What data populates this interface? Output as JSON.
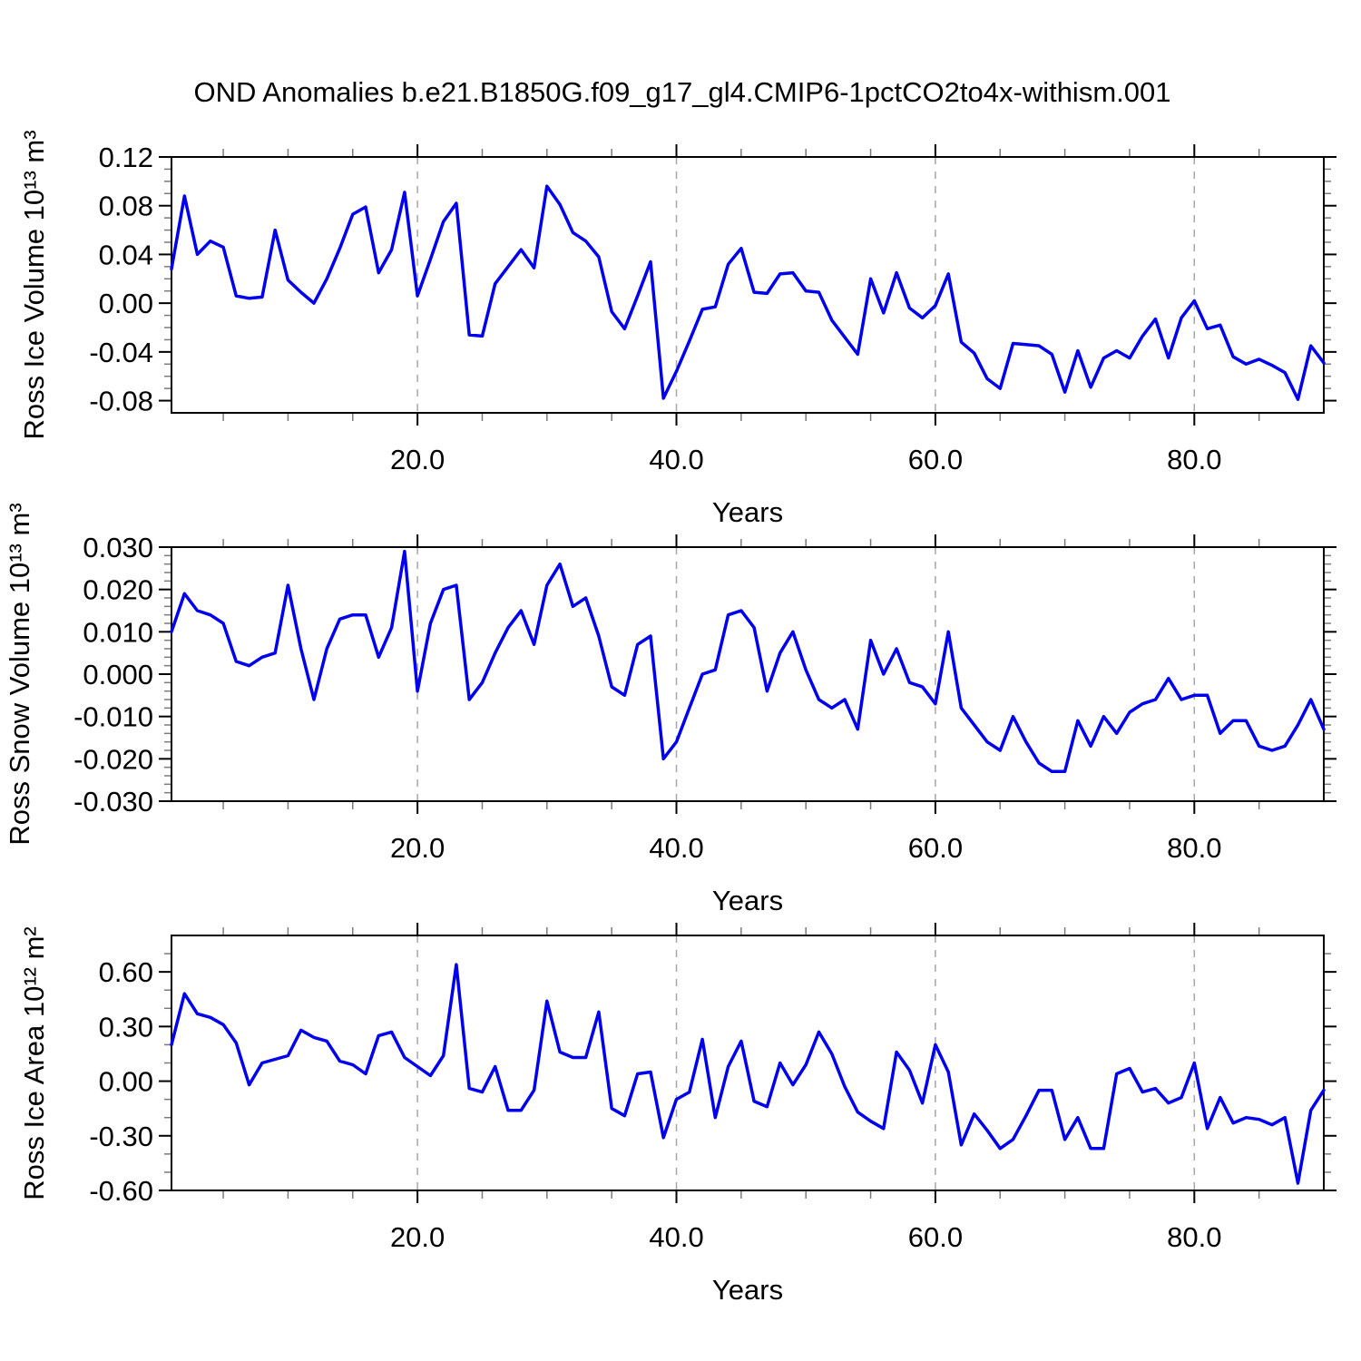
{
  "title": "OND Anomalies b.e21.B1850G.f09_g17_gl4.CMIP6-1pctCO2to4x-withism.001",
  "line_color": "#0000EE",
  "grid_color": "#a6a6a6",
  "chart_data": [
    {
      "type": "line",
      "ylabel": "Ross Ice Volume 10¹³ m³",
      "xlabel": "Years",
      "xlim": [
        1,
        90
      ],
      "ylim": [
        -0.09,
        0.12
      ],
      "x_major_ticks": [
        20,
        40,
        60,
        80
      ],
      "x_tick_labels": [
        "20.0",
        "40.0",
        "60.0",
        "80.0"
      ],
      "x_minor_step": 5,
      "y_major_ticks": [
        0.12,
        0.08,
        0.04,
        0.0,
        -0.04,
        -0.08
      ],
      "y_tick_labels": [
        "0.12",
        "0.08",
        "0.04",
        "0.00",
        "-0.04",
        "-0.08"
      ],
      "y_minor_step": 0.01,
      "grid": "vertical dashed at x majors",
      "legend": "none",
      "x_start": 1,
      "x_step": 1,
      "values": [
        0.028,
        0.088,
        0.04,
        0.051,
        0.046,
        0.006,
        0.004,
        0.005,
        0.06,
        0.019,
        0.009,
        0.0,
        0.02,
        0.045,
        0.073,
        0.079,
        0.025,
        0.044,
        0.091,
        0.006,
        0.036,
        0.067,
        0.082,
        -0.026,
        -0.027,
        0.016,
        0.03,
        0.044,
        0.029,
        0.096,
        0.081,
        0.058,
        0.051,
        0.038,
        -0.007,
        -0.021,
        0.006,
        0.034,
        -0.078,
        -0.056,
        -0.031,
        -0.005,
        -0.003,
        0.032,
        0.045,
        0.009,
        0.008,
        0.024,
        0.025,
        0.01,
        0.009,
        -0.014,
        -0.028,
        -0.042,
        0.02,
        -0.008,
        0.025,
        -0.004,
        -0.012,
        -0.002,
        0.024,
        -0.032,
        -0.041,
        -0.062,
        -0.07,
        -0.033,
        -0.034,
        -0.035,
        -0.042,
        -0.073,
        -0.039,
        -0.069,
        -0.045,
        -0.039,
        -0.045,
        -0.027,
        -0.013,
        -0.045,
        -0.012,
        0.002,
        -0.021,
        -0.018,
        -0.044,
        -0.05,
        -0.046,
        -0.051,
        -0.057,
        -0.079,
        -0.035,
        -0.049
      ]
    },
    {
      "type": "line",
      "ylabel": "Ross Snow Volume 10¹³ m³",
      "xlabel": "Years",
      "xlim": [
        1,
        90
      ],
      "ylim": [
        -0.03,
        0.03
      ],
      "x_major_ticks": [
        20,
        40,
        60,
        80
      ],
      "x_tick_labels": [
        "20.0",
        "40.0",
        "60.0",
        "80.0"
      ],
      "x_minor_step": 5,
      "y_major_ticks": [
        0.03,
        0.02,
        0.01,
        0.0,
        -0.01,
        -0.02,
        -0.03
      ],
      "y_tick_labels": [
        "0.030",
        "0.020",
        "0.010",
        "0.000",
        "-0.010",
        "-0.020",
        "-0.030"
      ],
      "y_minor_step": 0.002,
      "grid": "vertical dashed at x majors",
      "legend": "none",
      "x_start": 1,
      "x_step": 1,
      "values": [
        0.01,
        0.019,
        0.015,
        0.014,
        0.012,
        0.003,
        0.002,
        0.004,
        0.005,
        0.021,
        0.006,
        -0.006,
        0.006,
        0.013,
        0.014,
        0.014,
        0.004,
        0.011,
        0.029,
        -0.004,
        0.012,
        0.02,
        0.021,
        -0.006,
        -0.002,
        0.005,
        0.011,
        0.015,
        0.007,
        0.021,
        0.026,
        0.016,
        0.018,
        0.009,
        -0.003,
        -0.005,
        0.007,
        0.009,
        -0.02,
        -0.016,
        -0.008,
        0.0,
        0.001,
        0.014,
        0.015,
        0.011,
        -0.004,
        0.005,
        0.01,
        0.001,
        -0.006,
        -0.008,
        -0.006,
        -0.013,
        0.008,
        0.0,
        0.006,
        -0.002,
        -0.003,
        -0.007,
        0.01,
        -0.008,
        -0.012,
        -0.016,
        -0.018,
        -0.01,
        -0.016,
        -0.021,
        -0.023,
        -0.023,
        -0.011,
        -0.017,
        -0.01,
        -0.014,
        -0.009,
        -0.007,
        -0.006,
        -0.001,
        -0.006,
        -0.005,
        -0.005,
        -0.014,
        -0.011,
        -0.011,
        -0.017,
        -0.018,
        -0.017,
        -0.012,
        -0.006,
        -0.013
      ]
    },
    {
      "type": "line",
      "ylabel": "Ross Ice Area 10¹² m²",
      "xlabel": "Years",
      "xlim": [
        1,
        90
      ],
      "ylim": [
        -0.6,
        0.8
      ],
      "x_major_ticks": [
        20,
        40,
        60,
        80
      ],
      "x_tick_labels": [
        "20.0",
        "40.0",
        "60.0",
        "80.0"
      ],
      "x_minor_step": 5,
      "y_major_ticks": [
        0.6,
        0.3,
        0.0,
        -0.3,
        -0.6
      ],
      "y_tick_labels": [
        "0.60",
        "0.30",
        "0.00",
        "-0.30",
        "-0.60"
      ],
      "y_minor_step": 0.1,
      "grid": "vertical dashed at x majors",
      "legend": "none",
      "x_start": 1,
      "x_step": 1,
      "values": [
        0.2,
        0.48,
        0.37,
        0.35,
        0.31,
        0.21,
        -0.02,
        0.1,
        0.12,
        0.14,
        0.28,
        0.24,
        0.22,
        0.11,
        0.09,
        0.04,
        0.25,
        0.27,
        0.13,
        0.08,
        0.03,
        0.14,
        0.64,
        -0.04,
        -0.06,
        0.08,
        -0.16,
        -0.16,
        -0.05,
        0.44,
        0.16,
        0.13,
        0.13,
        0.38,
        -0.15,
        -0.19,
        0.04,
        0.05,
        -0.31,
        -0.1,
        -0.06,
        0.23,
        -0.2,
        0.08,
        0.22,
        -0.11,
        -0.14,
        0.1,
        -0.02,
        0.09,
        0.27,
        0.15,
        -0.03,
        -0.17,
        -0.22,
        -0.26,
        0.16,
        0.06,
        -0.12,
        0.2,
        0.05,
        -0.35,
        -0.18,
        -0.27,
        -0.37,
        -0.32,
        -0.19,
        -0.05,
        -0.05,
        -0.32,
        -0.2,
        -0.37,
        -0.37,
        0.04,
        0.07,
        -0.06,
        -0.04,
        -0.12,
        -0.09,
        0.1,
        -0.26,
        -0.09,
        -0.23,
        -0.2,
        -0.21,
        -0.24,
        -0.2,
        -0.56,
        -0.16,
        -0.05
      ]
    }
  ]
}
